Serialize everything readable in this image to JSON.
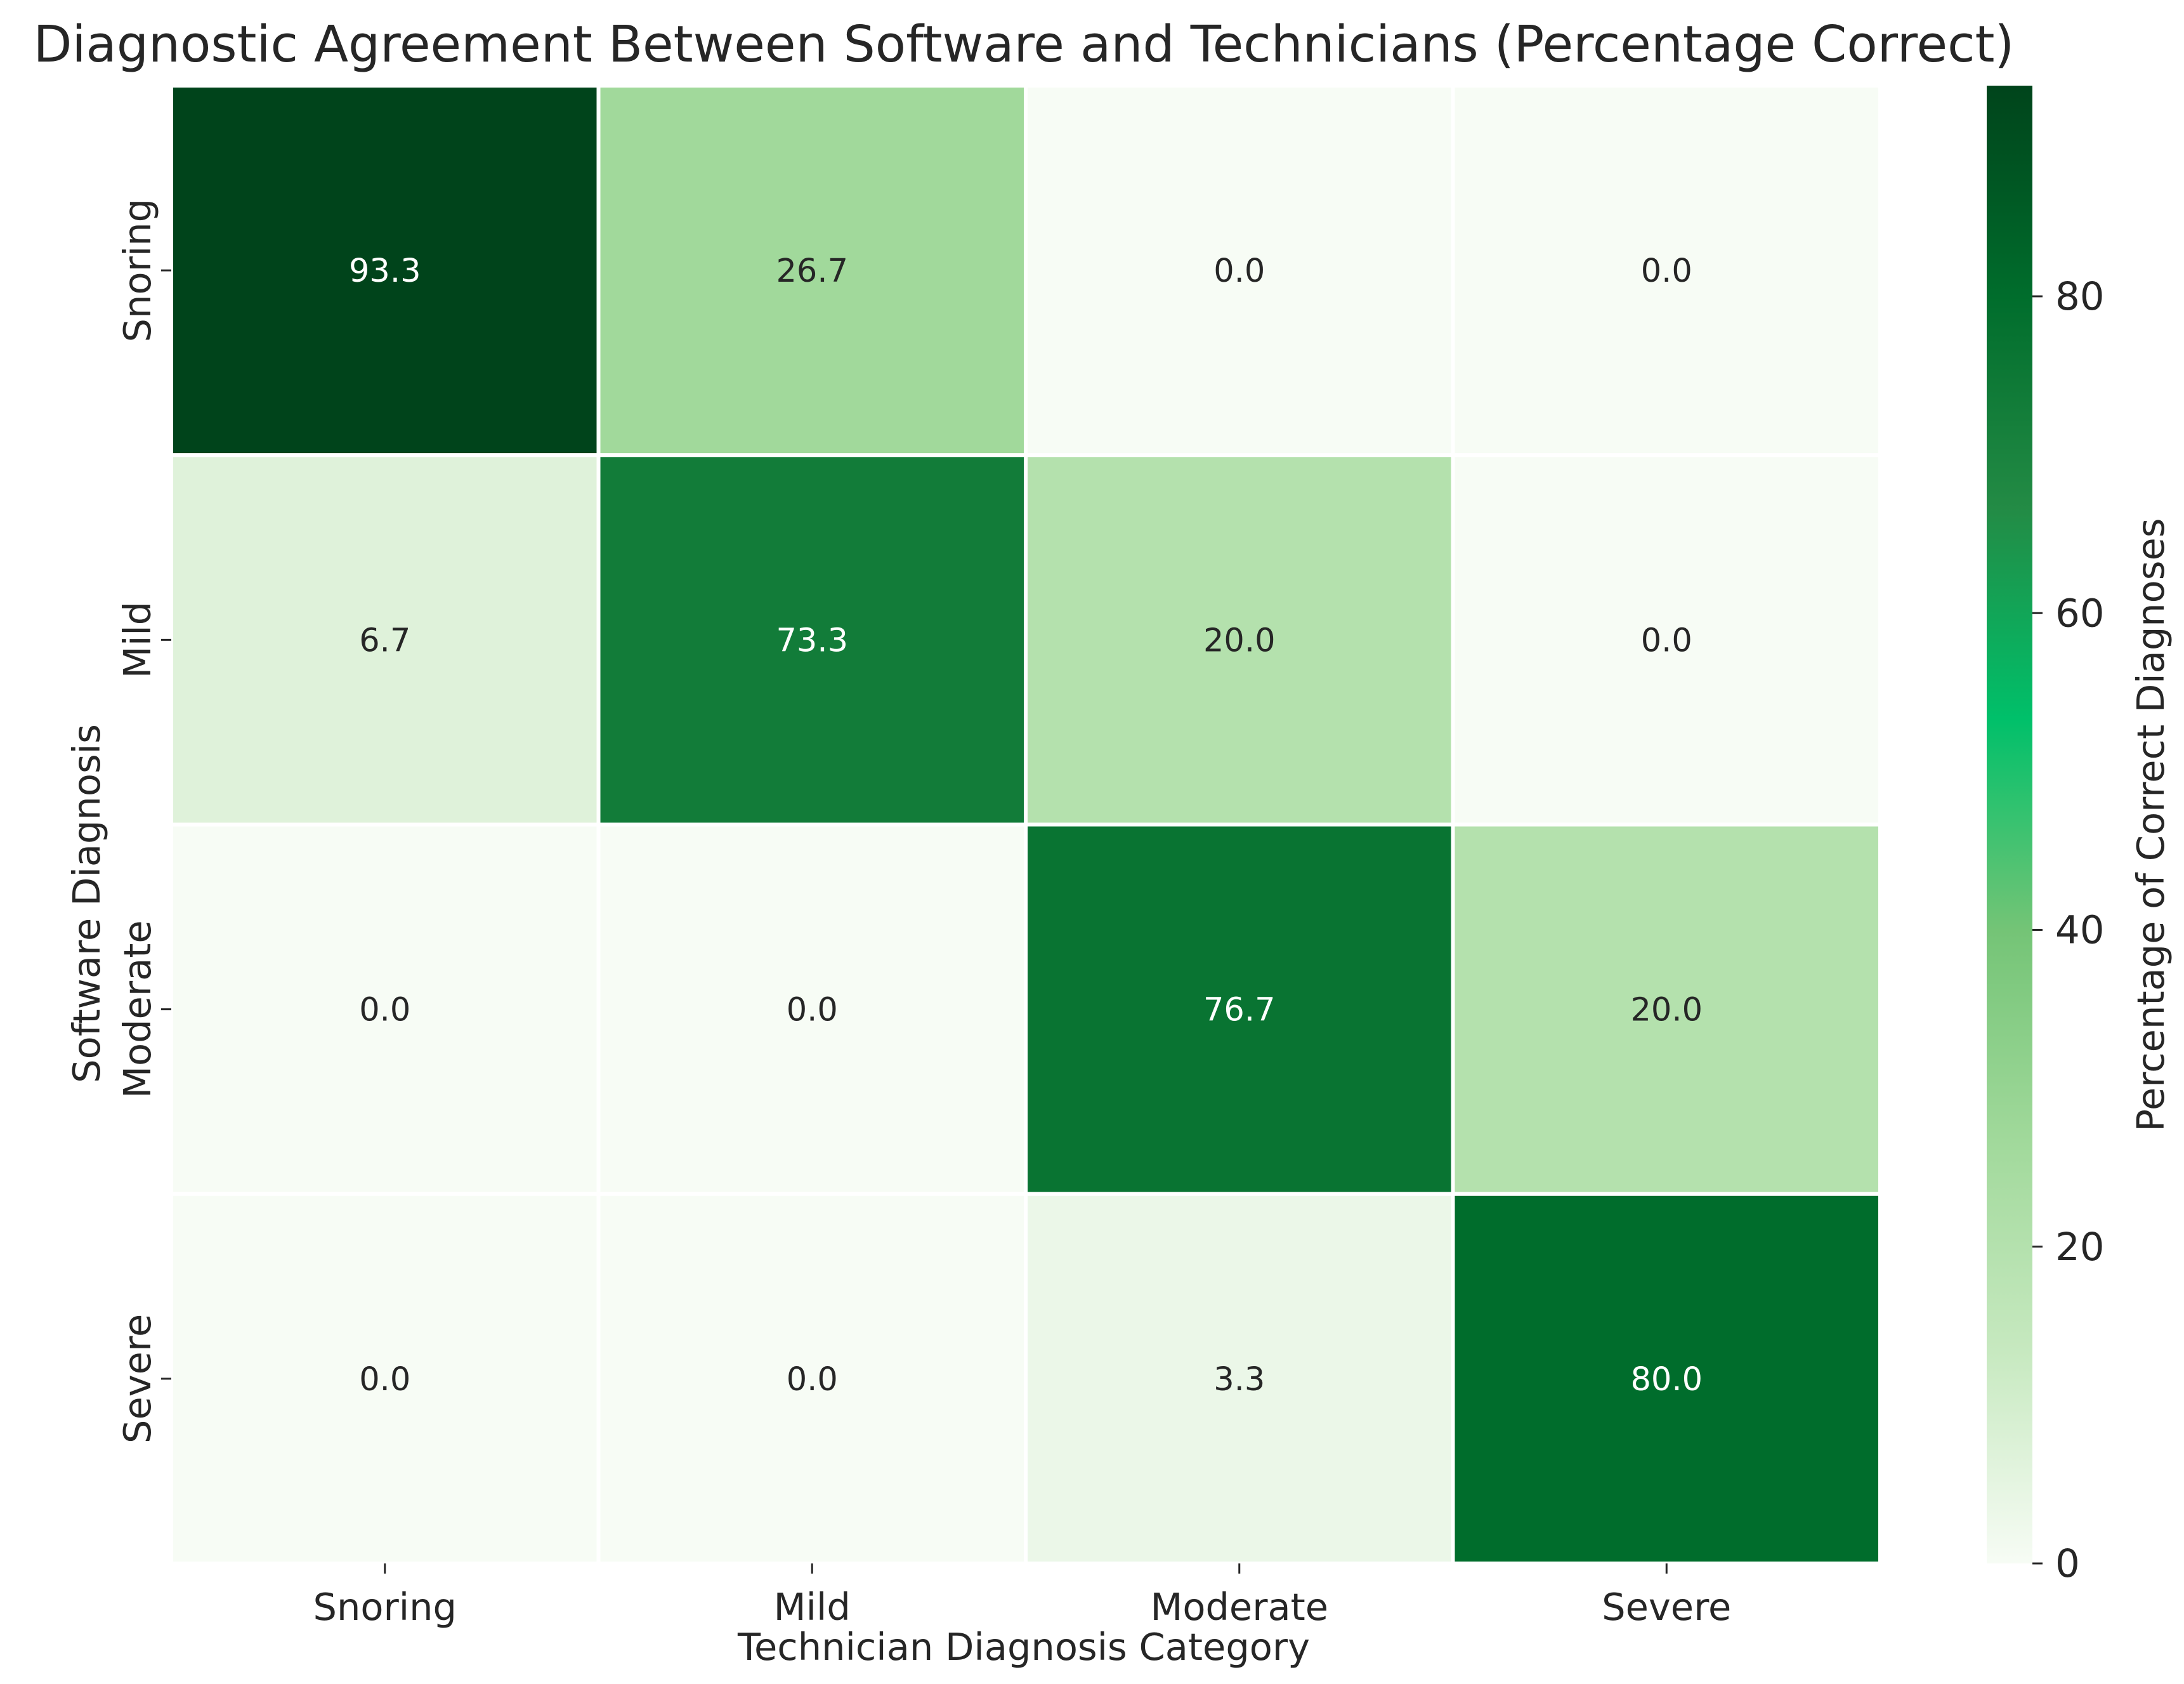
{
  "chart_data": {
    "type": "heatmap",
    "title": "Diagnostic Agreement Between Software and Technicians (Percentage Correct)",
    "xlabel": "Technician Diagnosis Category",
    "ylabel": "Software Diagnosis",
    "x_categories": [
      "Snoring",
      "Mild",
      "Moderate",
      "Severe"
    ],
    "y_categories": [
      "Snoring",
      "Mild",
      "Moderate",
      "Severe"
    ],
    "values": [
      [
        93.3,
        26.7,
        0.0,
        0.0
      ],
      [
        6.7,
        73.3,
        20.0,
        0.0
      ],
      [
        0.0,
        0.0,
        76.7,
        20.0
      ],
      [
        0.0,
        0.0,
        3.3,
        80.0
      ]
    ],
    "value_format": "0.0",
    "colorbar": {
      "label": "Percentage of Correct Diagnoses",
      "min": 0,
      "max": 93.3,
      "ticks": [
        0,
        20,
        40,
        60,
        80
      ],
      "colors": [
        "#f7fcf5",
        "#c7e9c0",
        "#a1d99b",
        "#74c476",
        "#00c06a",
        "#238b45",
        "#006d2c",
        "#00441b"
      ]
    },
    "grid": false,
    "cell_border_color": "#ffffff"
  }
}
